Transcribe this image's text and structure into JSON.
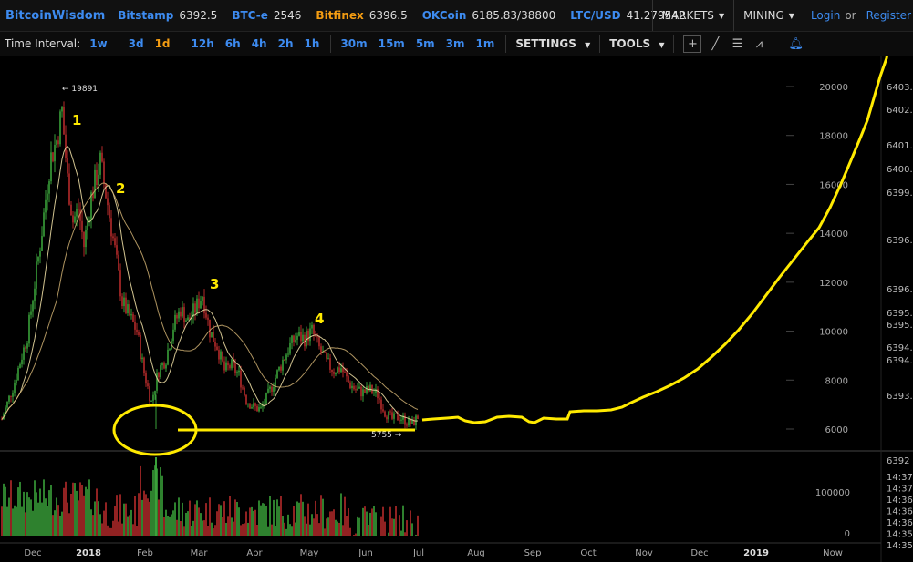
{
  "header": {
    "brand": "BitcoinWisdom",
    "markets": [
      {
        "name": "Bitstamp",
        "price": "6392.5",
        "color": "#3d8bf0"
      },
      {
        "name": "BTC-e",
        "price": "2546",
        "color": "#3d8bf0"
      },
      {
        "name": "Bitfinex",
        "price": "6396.5",
        "color": "#f39c12"
      },
      {
        "name": "OKCoin",
        "price": "6185.83/38800",
        "color": "#3d8bf0"
      },
      {
        "name": "LTC/USD",
        "price": "41.279542",
        "color": "#3d8bf0"
      }
    ],
    "menu_markets": "MARKETS",
    "menu_mining": "MINING",
    "login": "Login",
    "or": "or",
    "register": "Register"
  },
  "toolbar": {
    "time_interval_label": "Time Interval:",
    "intervals": [
      "1w",
      "3d",
      "1d",
      "12h",
      "6h",
      "4h",
      "2h",
      "1h",
      "30m",
      "15m",
      "5m",
      "3m",
      "1m"
    ],
    "active_interval": "1d",
    "settings": "SETTINGS",
    "tools": "TOOLS",
    "tool_icons": [
      "crosshair-icon",
      "line-icon",
      "horizontal-lines-icon",
      "fan-icon",
      "bell-icon"
    ]
  },
  "chart_data": {
    "type": "candlestick",
    "title": "",
    "x_labels": [
      "Dec",
      "2018",
      "Feb",
      "Mar",
      "Apr",
      "May",
      "Jun",
      "Jul",
      "Aug",
      "Sep",
      "Oct",
      "Nov",
      "Dec",
      "2019",
      "Now"
    ],
    "price_axis_ticks": [
      20000,
      18000,
      16000,
      14000,
      12000,
      10000,
      8000,
      6000
    ],
    "volume_axis_ticks": [
      100000,
      0
    ],
    "right_axis_ticks": [
      "6403.",
      "6402.",
      "6401.",
      "6400.",
      "6399.",
      "6396.",
      "6396.",
      "6395.",
      "6395.",
      "6394.",
      "6394.",
      "6393.",
      "6392"
    ],
    "time_axis_ticks": [
      "14:37",
      "14:37",
      "14:36",
      "14:36",
      "14:36",
      "14:35",
      "14:35"
    ],
    "high_marker": "← 19891",
    "low_marker": "5755 →",
    "annotations": [
      "1",
      "2",
      "3",
      "4"
    ],
    "price_ylim": [
      5000,
      21500
    ],
    "colors": {
      "up": "#3aa13a",
      "down": "#b52a2a",
      "annotation": "#ffea00",
      "ma": "#e8d8a0"
    },
    "price_path_approx": [
      {
        "x": "Nov",
        "close": 6400
      },
      {
        "x": "Dec",
        "close": 11000
      },
      {
        "x": "Dec",
        "close": 19000
      },
      {
        "x": "2018",
        "close": 14500
      },
      {
        "x": "2018",
        "close": 16900
      },
      {
        "x": "Feb",
        "close": 8300
      },
      {
        "x": "Feb",
        "close": 6900
      },
      {
        "x": "Mar",
        "close": 11500
      },
      {
        "x": "Apr",
        "close": 6700
      },
      {
        "x": "May",
        "close": 9800
      },
      {
        "x": "Jun",
        "close": 7600
      },
      {
        "x": "Jul",
        "close": 6400
      }
    ]
  }
}
